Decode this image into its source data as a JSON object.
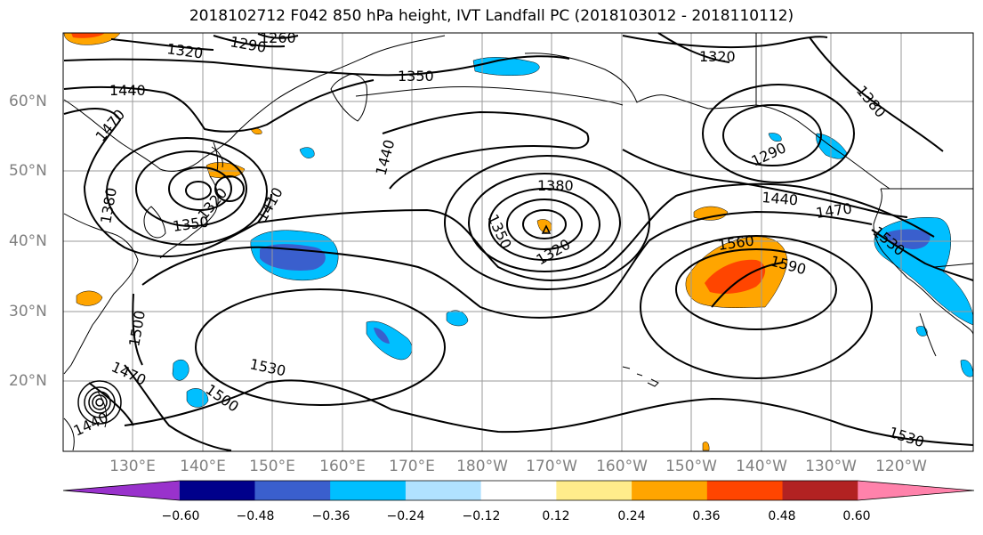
{
  "title": "2018102712 F042 850 hPa height, IVT Landfall PC (2018103012 - 2018110112)",
  "lat_labels": [
    "60°N",
    "50°N",
    "40°N",
    "30°N",
    "20°N"
  ],
  "lon_labels": [
    "130°E",
    "140°E",
    "150°E",
    "160°E",
    "170°E",
    "180°W",
    "170°W",
    "160°W",
    "150°W",
    "140°W",
    "130°W",
    "120°W"
  ],
  "contour_labels": [
    "1320",
    "1290",
    "1260",
    "1350",
    "1440",
    "1470",
    "1380",
    "1350",
    "1320",
    "1410",
    "1440",
    "1380",
    "1350",
    "1320",
    "1320",
    "1290",
    "1380",
    "1440",
    "1470",
    "1530",
    "1560",
    "1590",
    "1530",
    "1500",
    "1500",
    "1470",
    "1440",
    "1530"
  ],
  "colorbar": {
    "ticks": [
      "−0.60",
      "−0.48",
      "−0.36",
      "−0.24",
      "−0.12",
      "0.12",
      "0.24",
      "0.36",
      "0.48",
      "0.60"
    ],
    "colors": [
      "#9932cc",
      "#00008b",
      "#3a5fcd",
      "#00bfff",
      "#b0e2ff",
      "#ffffff",
      "#ffec8b",
      "#ffa500",
      "#ff4500",
      "#b22222",
      "#ff82ab"
    ]
  },
  "palette": {
    "strong_neg": "#3a5fcd",
    "mid_neg": "#00bfff",
    "weak_neg": "#b0e2ff",
    "weak_pos": "#ffec8b",
    "mid_pos": "#ffa500",
    "strong_pos": "#ff4500",
    "contour": "#000000",
    "grid": "#9a9a9a",
    "coast": "#000000"
  }
}
